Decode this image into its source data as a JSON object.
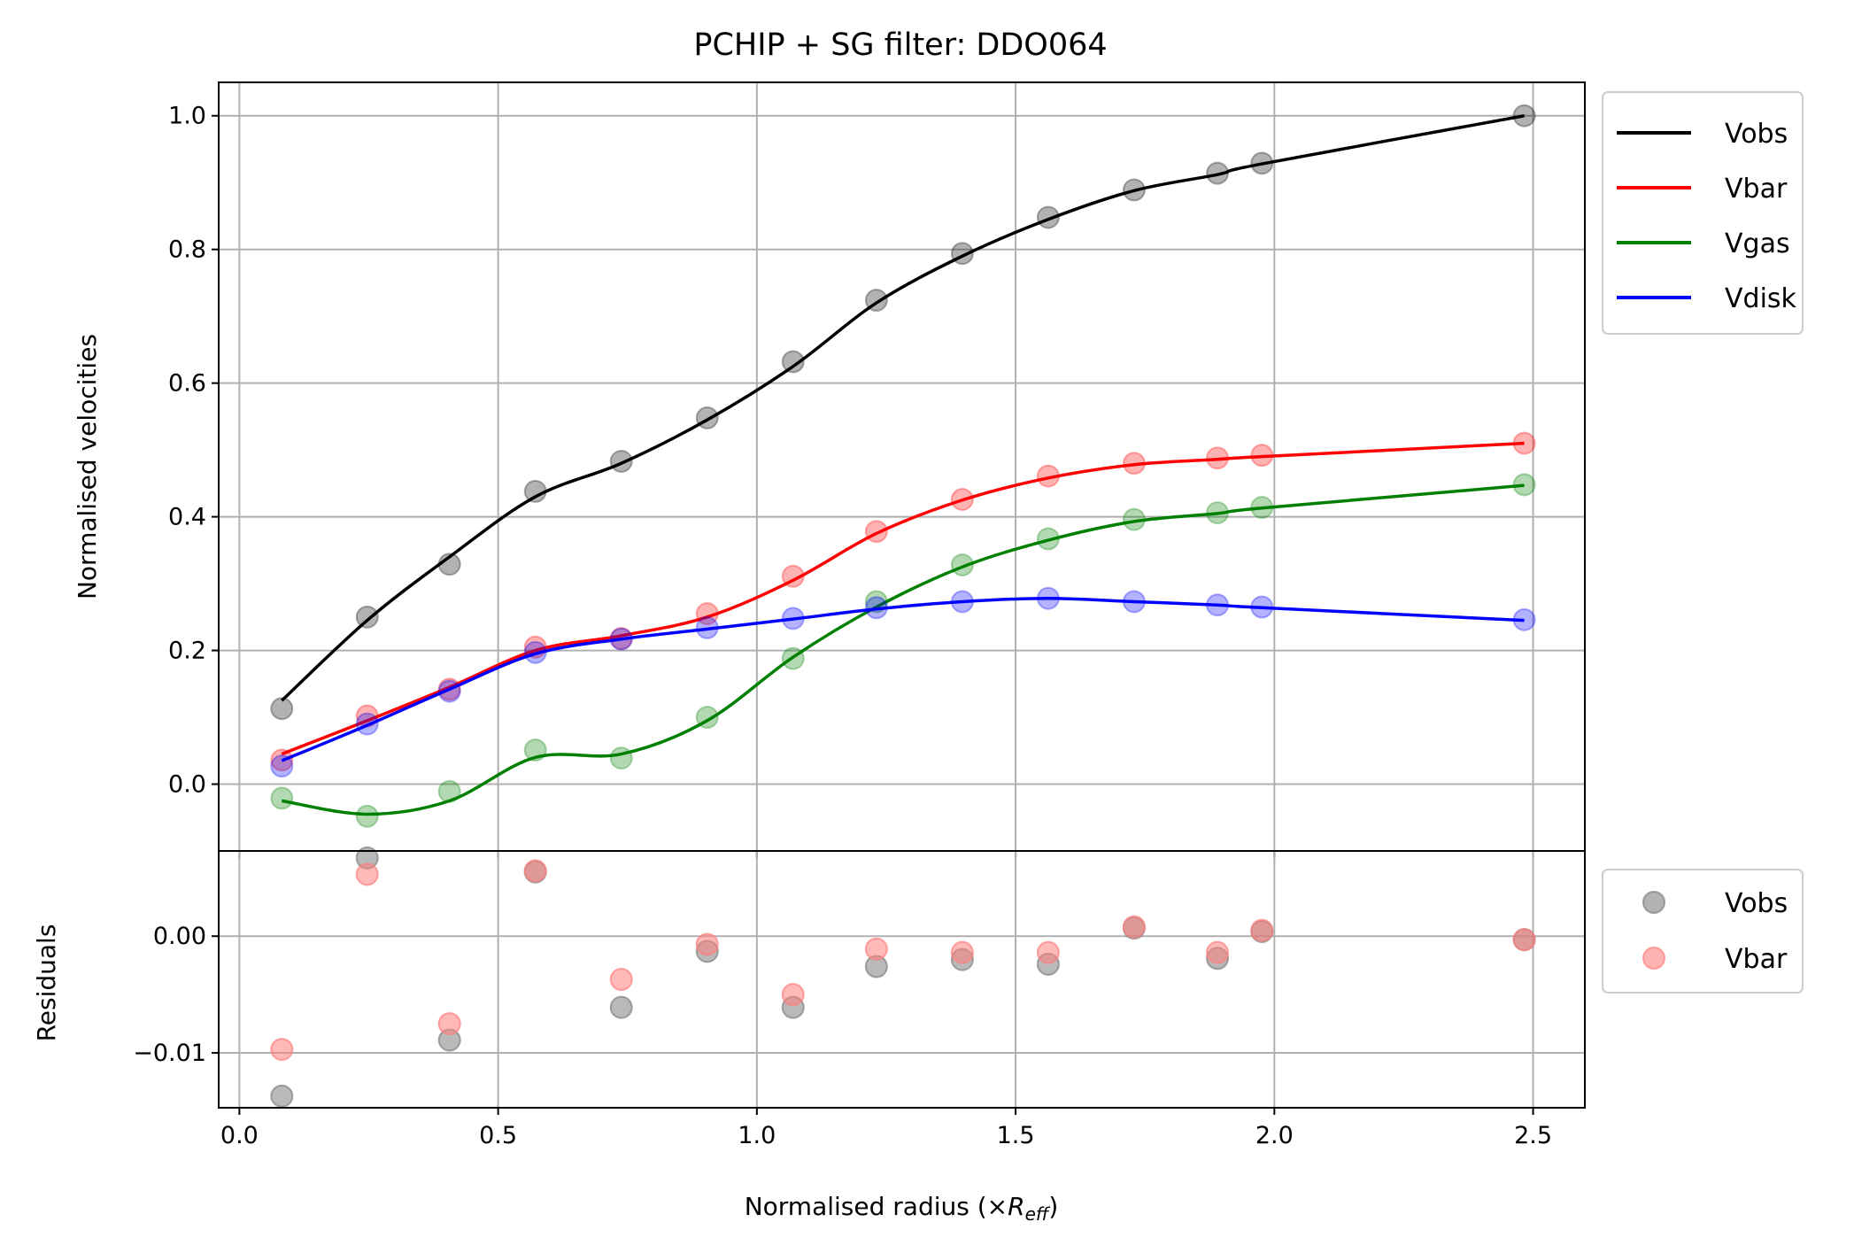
{
  "chart_data": [
    {
      "type": "line",
      "title": "PCHIP + SG filter: DDO064",
      "xlabel": "",
      "ylabel": "Normalised velocities",
      "xlim": [
        -0.04,
        2.6
      ],
      "ylim": [
        -0.1,
        1.05
      ],
      "xticks": [
        0.0,
        0.5,
        1.0,
        1.5,
        2.0,
        2.5
      ],
      "yticks": [
        0.0,
        0.2,
        0.4,
        0.6,
        0.8,
        1.0
      ],
      "ytick_labels": [
        "0.0",
        "0.2",
        "0.4",
        "0.6",
        "0.8",
        "1.0"
      ],
      "grid": true,
      "legend_position": "outside-right-top",
      "x": [
        0.082,
        0.247,
        0.406,
        0.572,
        0.738,
        0.904,
        1.07,
        1.231,
        1.397,
        1.563,
        1.729,
        1.89,
        1.976,
        2.483
      ],
      "series": [
        {
          "name": "Vobs",
          "color": "#000000",
          "points": [
            0.113,
            0.25,
            0.329,
            0.438,
            0.483,
            0.548,
            0.632,
            0.724,
            0.794,
            0.848,
            0.889,
            0.914,
            0.929,
            1.0
          ],
          "curve": [
            0.125,
            0.245,
            0.34,
            0.43,
            0.48,
            0.545,
            0.625,
            0.72,
            0.79,
            0.845,
            0.888,
            0.912,
            0.928,
            1.0
          ]
        },
        {
          "name": "Vbar",
          "color": "#ff0000",
          "points": [
            0.036,
            0.102,
            0.142,
            0.205,
            0.218,
            0.255,
            0.311,
            0.378,
            0.426,
            0.461,
            0.48,
            0.488,
            0.492,
            0.51
          ],
          "curve": [
            0.045,
            0.095,
            0.145,
            0.2,
            0.222,
            0.25,
            0.305,
            0.375,
            0.425,
            0.458,
            0.478,
            0.486,
            0.49,
            0.51
          ]
        },
        {
          "name": "Vgas",
          "color": "#008000",
          "points": [
            -0.021,
            -0.048,
            -0.011,
            0.051,
            0.039,
            0.1,
            0.188,
            0.273,
            0.328,
            0.367,
            0.396,
            0.406,
            0.414,
            0.448
          ],
          "curve": [
            -0.025,
            -0.045,
            -0.025,
            0.04,
            0.045,
            0.095,
            0.19,
            0.265,
            0.325,
            0.365,
            0.393,
            0.405,
            0.413,
            0.447
          ]
        },
        {
          "name": "Vdisk",
          "color": "#0000ff",
          "points": [
            0.027,
            0.09,
            0.139,
            0.197,
            0.217,
            0.234,
            0.248,
            0.264,
            0.273,
            0.278,
            0.273,
            0.268,
            0.265,
            0.246
          ],
          "curve": [
            0.035,
            0.088,
            0.142,
            0.195,
            0.217,
            0.232,
            0.247,
            0.262,
            0.273,
            0.278,
            0.273,
            0.268,
            0.264,
            0.245
          ]
        }
      ]
    },
    {
      "type": "scatter",
      "title": "",
      "xlabel": "Normalised radius (×R_eff)",
      "ylabel": "Residuals",
      "xlim": [
        -0.04,
        2.6
      ],
      "ylim": [
        -0.0147,
        0.0073
      ],
      "xticks": [
        0.0,
        0.5,
        1.0,
        1.5,
        2.0,
        2.5
      ],
      "xtick_labels": [
        "0.0",
        "0.5",
        "1.0",
        "1.5",
        "2.0",
        "2.5"
      ],
      "yticks": [
        0.0,
        -0.01
      ],
      "ytick_labels": [
        "0.00",
        "−0.01"
      ],
      "grid": true,
      "legend_position": "outside-right-top",
      "x": [
        0.082,
        0.247,
        0.406,
        0.572,
        0.738,
        0.904,
        1.07,
        1.231,
        1.397,
        1.563,
        1.729,
        1.89,
        1.976,
        2.483
      ],
      "series": [
        {
          "name": "Vobs",
          "color": "#808080",
          "values": [
            -0.0137,
            0.0067,
            -0.0089,
            0.0055,
            -0.0061,
            -0.0013,
            -0.0061,
            -0.0026,
            -0.002,
            -0.0024,
            0.0007,
            -0.0019,
            0.0004,
            -0.0003
          ]
        },
        {
          "name": "Vbar",
          "color": "#ff7f7f",
          "values": [
            -0.0097,
            0.0053,
            -0.0075,
            0.0056,
            -0.0037,
            -0.0007,
            -0.005,
            -0.0011,
            -0.0014,
            -0.0014,
            0.0008,
            -0.0014,
            0.0005,
            -0.0003
          ]
        }
      ]
    }
  ]
}
